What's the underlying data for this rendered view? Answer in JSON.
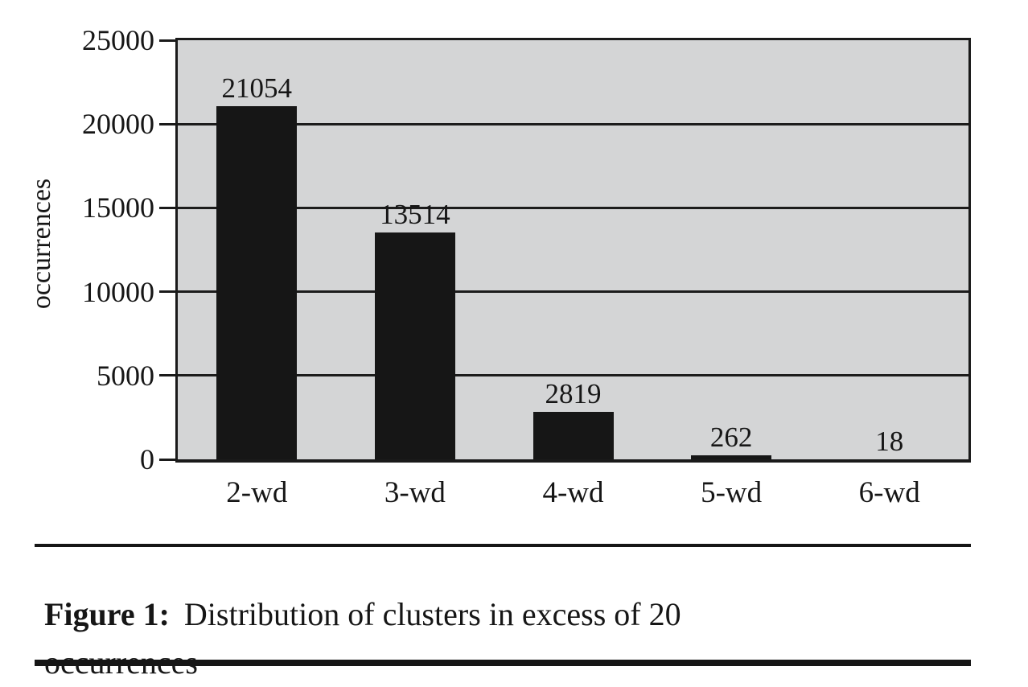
{
  "chart_data": {
    "type": "bar",
    "categories": [
      "2-wd",
      "3-wd",
      "4-wd",
      "5-wd",
      "6-wd"
    ],
    "values": [
      21054,
      13514,
      2819,
      262,
      18
    ],
    "value_labels": [
      "21054",
      "13514",
      "2819",
      "262",
      "18"
    ],
    "title": "",
    "xlabel": "",
    "ylabel": "occurrences",
    "ylim": [
      0,
      25000
    ],
    "yticks": [
      0,
      5000,
      10000,
      15000,
      20000,
      25000
    ],
    "ytick_labels": [
      "0",
      "5000",
      "10000",
      "15000",
      "20000",
      "25000"
    ],
    "grid": true,
    "legend_position": "none",
    "plot_background": "#d4d5d6",
    "bar_color": "#161616",
    "line_color": "#1a1a1a"
  },
  "caption": {
    "figure_label": "Figure 1:",
    "text": "Distribution of clusters in excess of 20 occurrences",
    "line1": "Distribution of clusters in excess of 20",
    "line2": "occurrences"
  }
}
